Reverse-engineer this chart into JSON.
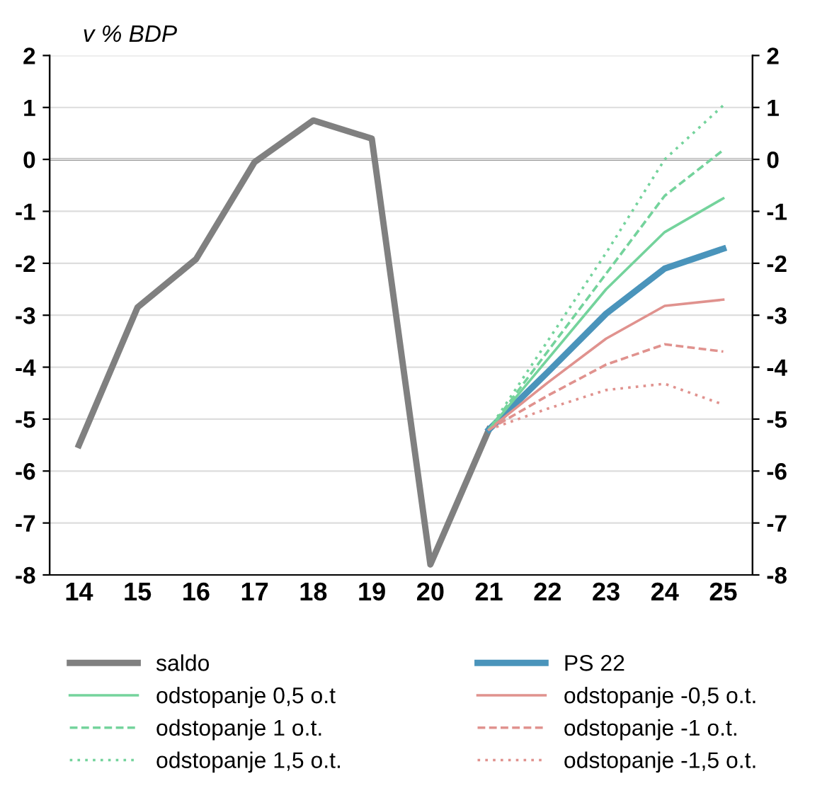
{
  "chart_data": {
    "type": "line",
    "subtitle": "v % BDP",
    "categories": [
      "14",
      "15",
      "16",
      "17",
      "18",
      "19",
      "20",
      "21",
      "22",
      "23",
      "24",
      "25"
    ],
    "series": [
      {
        "name": "saldo",
        "color": "#808080",
        "line_style": "solid",
        "values": [
          -5.5,
          -2.85,
          -1.92,
          -0.05,
          0.75,
          0.4,
          -7.8,
          -5.2,
          null,
          null,
          null,
          null
        ]
      },
      {
        "name": "PS 22",
        "color": "#4a94bb",
        "line_style": "solid",
        "values": [
          null,
          null,
          null,
          null,
          null,
          null,
          null,
          -5.2,
          -4.1,
          -2.97,
          -2.1,
          -1.72
        ]
      },
      {
        "name": "odstopanje 0,5 o.t",
        "color": "#74d39c",
        "line_style": "solid",
        "values": [
          null,
          null,
          null,
          null,
          null,
          null,
          null,
          -5.2,
          -3.85,
          -2.5,
          -1.4,
          -0.75
        ]
      },
      {
        "name": "odstopanje -0,5 o.t.",
        "color": "#e0928e",
        "line_style": "solid",
        "values": [
          null,
          null,
          null,
          null,
          null,
          null,
          null,
          -5.2,
          -4.3,
          -3.45,
          -2.82,
          -2.7
        ]
      },
      {
        "name": "odstopanje 1 o.t.",
        "color": "#74d39c",
        "line_style": "dashed",
        "values": [
          null,
          null,
          null,
          null,
          null,
          null,
          null,
          -5.2,
          -3.7,
          -2.2,
          -0.7,
          0.18
        ]
      },
      {
        "name": "odstopanje -1 o.t.",
        "color": "#e0928e",
        "line_style": "dashed",
        "values": [
          null,
          null,
          null,
          null,
          null,
          null,
          null,
          -5.2,
          -4.55,
          -3.95,
          -3.56,
          -3.7
        ]
      },
      {
        "name": "odstopanje 1,5 o.t.",
        "color": "#74d39c",
        "line_style": "dotted",
        "values": [
          null,
          null,
          null,
          null,
          null,
          null,
          null,
          -5.2,
          -3.5,
          -1.8,
          0.0,
          1.04
        ]
      },
      {
        "name": "odstopanje -1,5 o.t.",
        "color": "#e0928e",
        "line_style": "dotted",
        "values": [
          null,
          null,
          null,
          null,
          null,
          null,
          null,
          -5.2,
          -4.8,
          -4.44,
          -4.32,
          -4.72
        ]
      }
    ],
    "ylim": [
      -8,
      2
    ],
    "yticks": [
      -8,
      -7,
      -6,
      -5,
      -4,
      -3,
      -2,
      -1,
      0,
      1,
      2
    ],
    "y2lim": [
      -8,
      2
    ],
    "y2ticks": [
      -8,
      -7,
      -6,
      -5,
      -4,
      -3,
      -2,
      -1,
      0,
      1,
      2
    ],
    "grid": true,
    "legend": "bottom",
    "marker": "none"
  }
}
